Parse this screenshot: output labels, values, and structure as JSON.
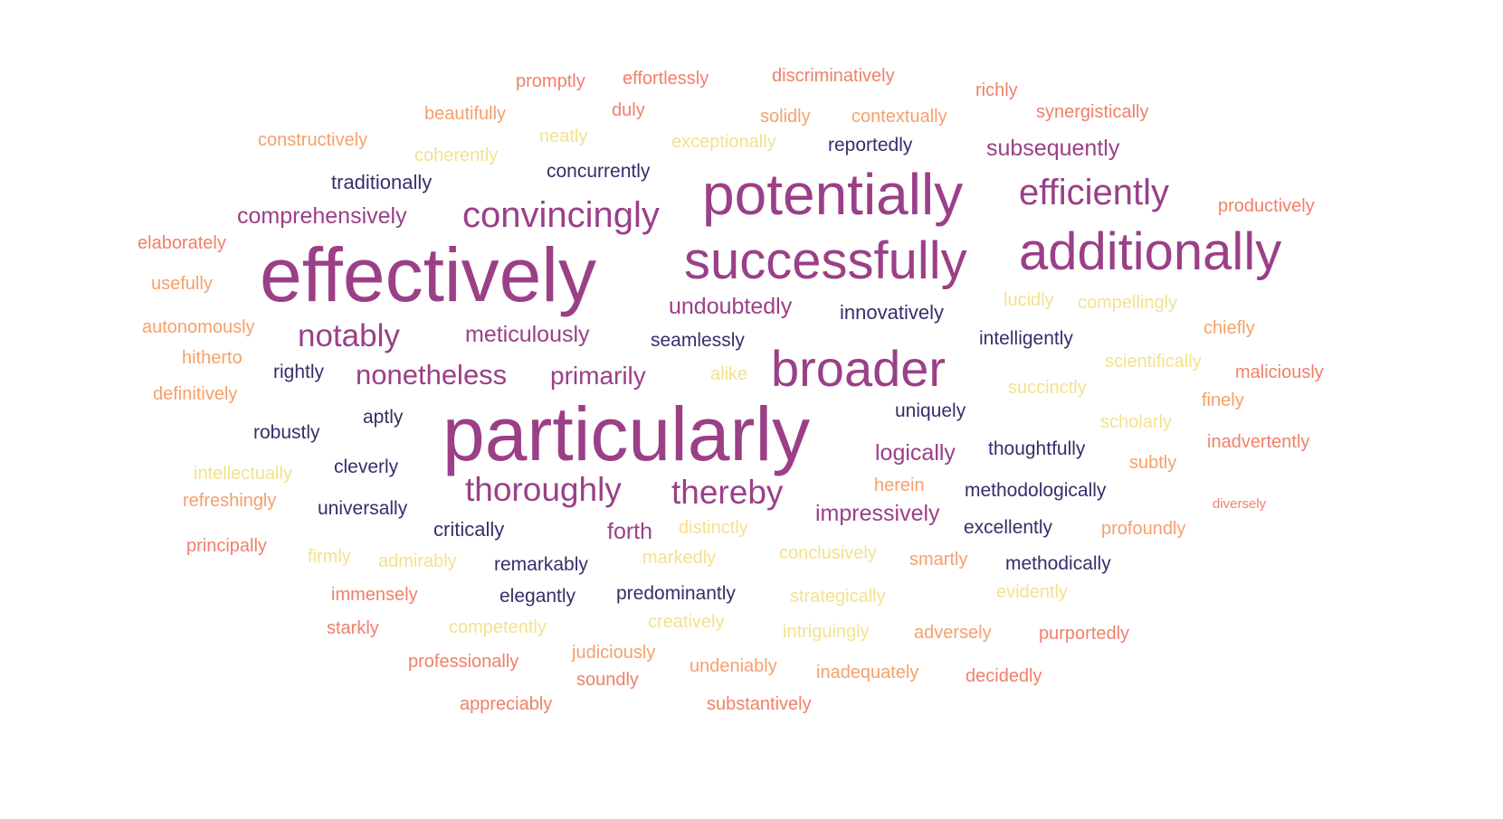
{
  "palette": {
    "purple": "#9b3f87",
    "navy": "#3b2c6a",
    "coral": "#f0806a",
    "orange": "#f5a06b",
    "pale_yellow": "#f2e28e"
  },
  "words": [
    {
      "text": "effectively",
      "tone": "purple",
      "weight": 1.0
    },
    {
      "text": "particularly",
      "tone": "purple",
      "weight": 1.0
    },
    {
      "text": "potentially",
      "tone": "purple",
      "weight": 0.75
    },
    {
      "text": "successfully",
      "tone": "purple",
      "weight": 0.67
    },
    {
      "text": "additionally",
      "tone": "purple",
      "weight": 0.67
    },
    {
      "text": "broader",
      "tone": "purple",
      "weight": 0.67
    },
    {
      "text": "convincingly",
      "tone": "purple",
      "weight": 0.5
    },
    {
      "text": "efficiently",
      "tone": "purple",
      "weight": 0.5
    },
    {
      "text": "thoroughly",
      "tone": "purple",
      "weight": 0.45
    },
    {
      "text": "thereby",
      "tone": "purple",
      "weight": 0.45
    },
    {
      "text": "notably",
      "tone": "purple",
      "weight": 0.42
    },
    {
      "text": "nonetheless",
      "tone": "purple",
      "weight": 0.37
    },
    {
      "text": "primarily",
      "tone": "purple",
      "weight": 0.35
    },
    {
      "text": "subsequently",
      "tone": "purple",
      "weight": 0.3
    },
    {
      "text": "comprehensively",
      "tone": "purple",
      "weight": 0.3
    },
    {
      "text": "meticulously",
      "tone": "purple",
      "weight": 0.3
    },
    {
      "text": "undoubtedly",
      "tone": "purple",
      "weight": 0.3
    },
    {
      "text": "logically",
      "tone": "purple",
      "weight": 0.3
    },
    {
      "text": "impressively",
      "tone": "purple",
      "weight": 0.3
    },
    {
      "text": "forth",
      "tone": "purple",
      "weight": 0.3
    },
    {
      "text": "innovatively",
      "tone": "navy",
      "weight": 0.26
    },
    {
      "text": "traditionally",
      "tone": "navy",
      "weight": 0.26
    },
    {
      "text": "concurrently",
      "tone": "navy",
      "weight": 0.24
    },
    {
      "text": "reportedly",
      "tone": "navy",
      "weight": 0.24
    },
    {
      "text": "seamlessly",
      "tone": "navy",
      "weight": 0.24
    },
    {
      "text": "intelligently",
      "tone": "navy",
      "weight": 0.24
    },
    {
      "text": "rightly",
      "tone": "navy",
      "weight": 0.24
    },
    {
      "text": "aptly",
      "tone": "navy",
      "weight": 0.24
    },
    {
      "text": "robustly",
      "tone": "navy",
      "weight": 0.24
    },
    {
      "text": "uniquely",
      "tone": "navy",
      "weight": 0.24
    },
    {
      "text": "thoughtfully",
      "tone": "navy",
      "weight": 0.24
    },
    {
      "text": "cleverly",
      "tone": "navy",
      "weight": 0.24
    },
    {
      "text": "methodologically",
      "tone": "navy",
      "weight": 0.24
    },
    {
      "text": "universally",
      "tone": "navy",
      "weight": 0.24
    },
    {
      "text": "critically",
      "tone": "navy",
      "weight": 0.26
    },
    {
      "text": "excellently",
      "tone": "navy",
      "weight": 0.24
    },
    {
      "text": "remarkably",
      "tone": "navy",
      "weight": 0.24
    },
    {
      "text": "methodically",
      "tone": "navy",
      "weight": 0.24
    },
    {
      "text": "elegantly",
      "tone": "navy",
      "weight": 0.24
    },
    {
      "text": "predominantly",
      "tone": "navy",
      "weight": 0.24
    },
    {
      "text": "promptly",
      "tone": "coral",
      "weight": 0.2
    },
    {
      "text": "effortlessly",
      "tone": "coral",
      "weight": 0.2
    },
    {
      "text": "discriminatively",
      "tone": "coral",
      "weight": 0.2
    },
    {
      "text": "richly",
      "tone": "coral",
      "weight": 0.2
    },
    {
      "text": "beautifully",
      "tone": "orange",
      "weight": 0.2
    },
    {
      "text": "duly",
      "tone": "coral",
      "weight": 0.2
    },
    {
      "text": "solidly",
      "tone": "orange",
      "weight": 0.2
    },
    {
      "text": "contextually",
      "tone": "orange",
      "weight": 0.2
    },
    {
      "text": "synergistically",
      "tone": "coral",
      "weight": 0.2
    },
    {
      "text": "constructively",
      "tone": "orange",
      "weight": 0.2
    },
    {
      "text": "neatly",
      "tone": "pale_yellow",
      "weight": 0.2
    },
    {
      "text": "exceptionally",
      "tone": "pale_yellow",
      "weight": 0.2
    },
    {
      "text": "coherently",
      "tone": "pale_yellow",
      "weight": 0.2
    },
    {
      "text": "productively",
      "tone": "coral",
      "weight": 0.2
    },
    {
      "text": "elaborately",
      "tone": "coral",
      "weight": 0.2
    },
    {
      "text": "usefully",
      "tone": "orange",
      "weight": 0.2
    },
    {
      "text": "lucidly",
      "tone": "pale_yellow",
      "weight": 0.2
    },
    {
      "text": "compellingly",
      "tone": "pale_yellow",
      "weight": 0.2
    },
    {
      "text": "autonomously",
      "tone": "orange",
      "weight": 0.2
    },
    {
      "text": "chiefly",
      "tone": "orange",
      "weight": 0.2
    },
    {
      "text": "hitherto",
      "tone": "orange",
      "weight": 0.2
    },
    {
      "text": "scientifically",
      "tone": "pale_yellow",
      "weight": 0.2
    },
    {
      "text": "maliciously",
      "tone": "coral",
      "weight": 0.2
    },
    {
      "text": "alike",
      "tone": "pale_yellow",
      "weight": 0.2
    },
    {
      "text": "definitively",
      "tone": "orange",
      "weight": 0.2
    },
    {
      "text": "succinctly",
      "tone": "pale_yellow",
      "weight": 0.2
    },
    {
      "text": "finely",
      "tone": "orange",
      "weight": 0.2
    },
    {
      "text": "scholarly",
      "tone": "pale_yellow",
      "weight": 0.2
    },
    {
      "text": "inadvertently",
      "tone": "coral",
      "weight": 0.2
    },
    {
      "text": "intellectually",
      "tone": "pale_yellow",
      "weight": 0.2
    },
    {
      "text": "subtly",
      "tone": "orange",
      "weight": 0.2
    },
    {
      "text": "refreshingly",
      "tone": "orange",
      "weight": 0.2
    },
    {
      "text": "herein",
      "tone": "orange",
      "weight": 0.2
    },
    {
      "text": "diversely",
      "tone": "coral",
      "weight": 0.14
    },
    {
      "text": "distinctly",
      "tone": "pale_yellow",
      "weight": 0.2
    },
    {
      "text": "profoundly",
      "tone": "orange",
      "weight": 0.2
    },
    {
      "text": "principally",
      "tone": "coral",
      "weight": 0.2
    },
    {
      "text": "firmly",
      "tone": "pale_yellow",
      "weight": 0.2
    },
    {
      "text": "admirably",
      "tone": "pale_yellow",
      "weight": 0.2
    },
    {
      "text": "markedly",
      "tone": "pale_yellow",
      "weight": 0.2
    },
    {
      "text": "conclusively",
      "tone": "pale_yellow",
      "weight": 0.2
    },
    {
      "text": "smartly",
      "tone": "orange",
      "weight": 0.2
    },
    {
      "text": "immensely",
      "tone": "coral",
      "weight": 0.2
    },
    {
      "text": "strategically",
      "tone": "pale_yellow",
      "weight": 0.2
    },
    {
      "text": "evidently",
      "tone": "pale_yellow",
      "weight": 0.2
    },
    {
      "text": "starkly",
      "tone": "coral",
      "weight": 0.2
    },
    {
      "text": "competently",
      "tone": "pale_yellow",
      "weight": 0.2
    },
    {
      "text": "creatively",
      "tone": "pale_yellow",
      "weight": 0.2
    },
    {
      "text": "intriguingly",
      "tone": "pale_yellow",
      "weight": 0.2
    },
    {
      "text": "adversely",
      "tone": "orange",
      "weight": 0.2
    },
    {
      "text": "purportedly",
      "tone": "coral",
      "weight": 0.2
    },
    {
      "text": "judiciously",
      "tone": "orange",
      "weight": 0.2
    },
    {
      "text": "professionally",
      "tone": "coral",
      "weight": 0.2
    },
    {
      "text": "undeniably",
      "tone": "orange",
      "weight": 0.2
    },
    {
      "text": "inadequately",
      "tone": "orange",
      "weight": 0.2
    },
    {
      "text": "decidedly",
      "tone": "coral",
      "weight": 0.2
    },
    {
      "text": "soundly",
      "tone": "coral",
      "weight": 0.2
    },
    {
      "text": "appreciably",
      "tone": "coral",
      "weight": 0.2
    },
    {
      "text": "substantively",
      "tone": "coral",
      "weight": 0.2
    }
  ]
}
